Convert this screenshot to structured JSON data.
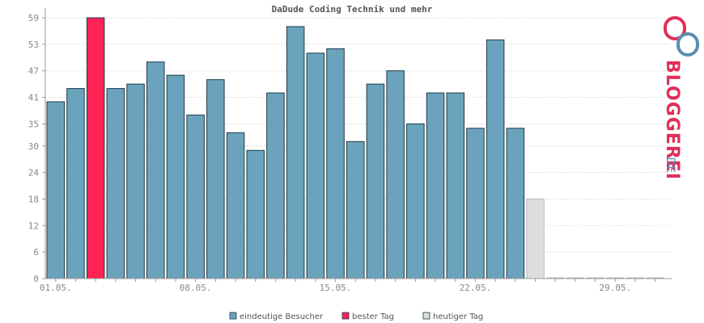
{
  "chart_data": {
    "type": "bar",
    "title": "DaDude Coding Technik und mehr",
    "ylim": [
      0,
      60
    ],
    "yticks": [
      0,
      6,
      12,
      18,
      24,
      30,
      35,
      41,
      47,
      53,
      59
    ],
    "x_labels": [
      "01.05.",
      "08.05.",
      "15.05.",
      "22.05.",
      "29.05."
    ],
    "x_label_day_index": [
      1,
      8,
      15,
      22,
      29
    ],
    "days_total": 31,
    "grid": true,
    "legend_position": "bottom",
    "series": [
      {
        "name": "eindeutige Besucher",
        "color": "#6ba3bc",
        "values": [
          40,
          43,
          59,
          43,
          44,
          49,
          46,
          37,
          45,
          33,
          29,
          42,
          57,
          51,
          52,
          31,
          44,
          47,
          35,
          42,
          42,
          34,
          54,
          34
        ]
      },
      {
        "name": "bester Tag",
        "color": "#ff2255",
        "day": 3,
        "value": 59
      },
      {
        "name": "heutiger Tag",
        "color": "#dddddd",
        "day": 25,
        "value": 18
      }
    ]
  },
  "watermark": {
    "brand": "BLOGGEREI",
    "tld": ".DE",
    "colors": {
      "primary": "#e0305a",
      "secondary": "#5a8fb0"
    }
  }
}
